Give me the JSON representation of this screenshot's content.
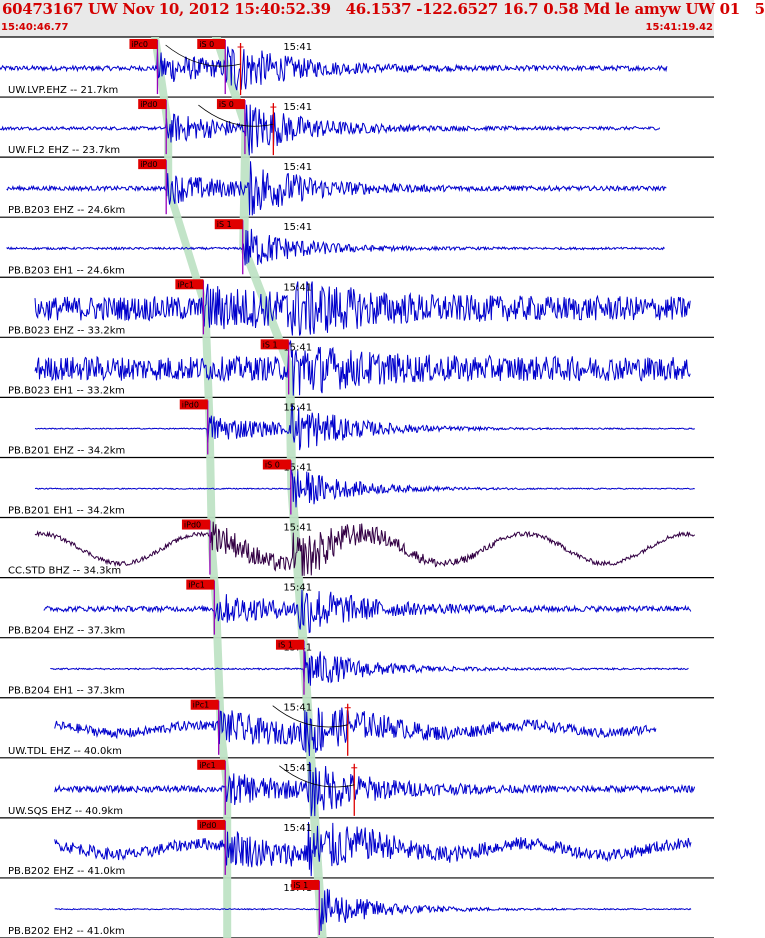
{
  "header": {
    "title": "60473167 UW Nov 10, 2012 15:40:52.39   46.1537 -122.6527 16.7 0.58 Md le amyw UW 01   5",
    "time_start": "15:40:46.77",
    "time_end": "15:41:19.42"
  },
  "colors": {
    "trace": "#0000cc",
    "trace_alt": "#330044",
    "pick_box": "#e00000",
    "pick_line": "#9900bb",
    "window": "#bfe3c5",
    "header_bg": "#e9e9e9",
    "title": "#d40000"
  },
  "chart_data": {
    "type": "line",
    "title": "60473167 UW Nov 10, 2012 15:40:52.39   46.1537 -122.6527 16.7 0.58 Md le amyw UW 01   5",
    "x_range": [
      "15:40:46.77",
      "15:41:19.42"
    ],
    "tick_label": "15:41",
    "tick_time_offset_s": 13.23,
    "series": [
      {
        "name": "UW.LVP.EHZ -- 21.7km",
        "trace_start_s": 0.0,
        "trace_end_s": 30.5,
        "noise": 0.09,
        "sine": 0,
        "p_pick": {
          "label": "iPc0",
          "t": 7.2
        },
        "s_pick": {
          "label": "iS 0",
          "t": 10.3
        },
        "red_pick_t": 11.0
      },
      {
        "name": "UW.FL2 EHZ -- 23.7km",
        "trace_start_s": 0.0,
        "trace_end_s": 30.2,
        "noise": 0.06,
        "sine": 0,
        "p_pick": {
          "label": "iPd0",
          "t": 7.6
        },
        "s_pick": {
          "label": "iS 0",
          "t": 11.2
        },
        "red_pick_t": 12.5
      },
      {
        "name": "PB.B203 EHZ -- 24.6km",
        "trace_start_s": 0.3,
        "trace_end_s": 30.5,
        "noise": 0.08,
        "sine": 0,
        "p_pick": {
          "label": "iPd0",
          "t": 7.6
        },
        "s_pick": null
      },
      {
        "name": "PB.B203 EH1 -- 24.6km",
        "trace_start_s": 0.3,
        "trace_end_s": 30.4,
        "noise": 0.04,
        "sine": 0,
        "p_pick": null,
        "s_pick": {
          "label": "iS 1",
          "t": 11.1
        }
      },
      {
        "name": "PB.B023 EHZ -- 33.2km",
        "trace_start_s": 1.6,
        "trace_end_s": 31.6,
        "noise": 0.45,
        "sine": 0,
        "p_pick": {
          "label": "iPc1",
          "t": 9.3
        },
        "s_pick": null
      },
      {
        "name": "PB.B023 EH1 -- 33.2km",
        "trace_start_s": 1.6,
        "trace_end_s": 31.6,
        "noise": 0.45,
        "sine": 0,
        "p_pick": null,
        "s_pick": {
          "label": "iS 1",
          "t": 13.2
        }
      },
      {
        "name": "PB.B201 EHZ -- 34.2km",
        "trace_start_s": 1.6,
        "trace_end_s": 31.8,
        "noise": 0.02,
        "sine": 0,
        "p_pick": {
          "label": "iPd0",
          "t": 9.5
        },
        "s_pick": null
      },
      {
        "name": "PB.B201 EH1 -- 34.2km",
        "trace_start_s": 1.6,
        "trace_end_s": 31.8,
        "noise": 0.02,
        "sine": 0,
        "p_pick": null,
        "s_pick": {
          "label": "iS 0",
          "t": 13.3
        }
      },
      {
        "name": "CC.STD BHZ -- 34.3km",
        "trace_start_s": 1.6,
        "trace_end_s": 31.8,
        "noise": 0.08,
        "sine": 0.55,
        "p_pick": {
          "label": "iPd0",
          "t": 9.6
        },
        "s_pick": null
      },
      {
        "name": "PB.B204 EHZ -- 37.3km",
        "trace_start_s": 2.0,
        "trace_end_s": 31.6,
        "noise": 0.1,
        "sine": 0,
        "p_pick": {
          "label": "iPc1",
          "t": 9.8
        },
        "s_pick": null
      },
      {
        "name": "PB.B204 EH1 -- 37.3km",
        "trace_start_s": 2.3,
        "trace_end_s": 31.5,
        "noise": 0.03,
        "sine": 0,
        "p_pick": null,
        "s_pick": {
          "label": "iS 1",
          "t": 13.9
        }
      },
      {
        "name": "UW.TDL EHZ -- 40.0km",
        "trace_start_s": 2.5,
        "trace_end_s": 30.0,
        "noise": 0.18,
        "sine": 0.15,
        "p_pick": {
          "label": "iPc1",
          "t": 10.0
        },
        "s_pick": null,
        "red_pick_t": 15.9
      },
      {
        "name": "UW.SQS EHZ -- 40.9km",
        "trace_start_s": 2.5,
        "trace_end_s": 31.8,
        "noise": 0.12,
        "sine": 0,
        "p_pick": {
          "label": "iPc1",
          "t": 10.3
        },
        "s_pick": null,
        "red_pick_t": 16.2
      },
      {
        "name": "PB.B202 EHZ -- 41.0km",
        "trace_start_s": 2.5,
        "trace_end_s": 31.6,
        "noise": 0.22,
        "sine": 0.2,
        "p_pick": {
          "label": "iPd0",
          "t": 10.3
        },
        "s_pick": null
      },
      {
        "name": "PB.B202 EH2 -- 41.0km",
        "trace_start_s": 2.5,
        "trace_end_s": 31.6,
        "noise": 0.02,
        "sine": 0,
        "p_pick": null,
        "s_pick": {
          "label": "iS 1",
          "t": 14.6
        }
      }
    ]
  }
}
